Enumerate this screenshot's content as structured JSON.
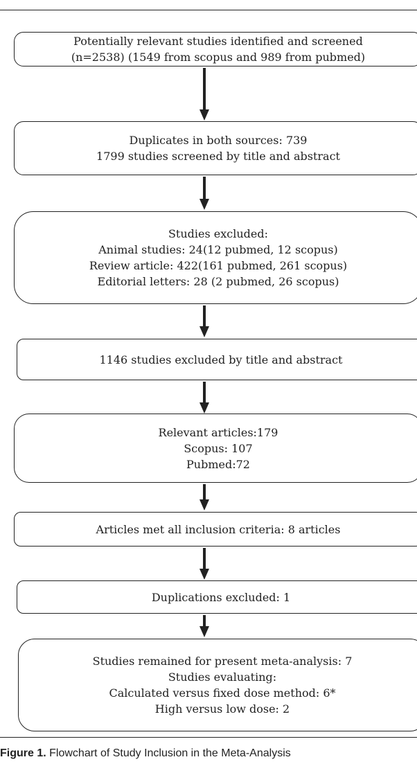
{
  "boxes": [
    {
      "lines": [
        "Potentially relevant studies identified and screened",
        "(n=2538) (1549 from scopus and 989 from pubmed)"
      ]
    },
    {
      "lines": [
        "Duplicates in both sources: 739",
        "1799 studies screened by title and abstract"
      ]
    },
    {
      "lines": [
        "Studies excluded:",
        "Animal studies: 24(12 pubmed, 12 scopus)",
        "Review article: 422(161 pubmed, 261 scopus)",
        "Editorial letters: 28 (2 pubmed, 26 scopus)"
      ]
    },
    {
      "lines": [
        "1146 studies excluded by title and abstract"
      ]
    },
    {
      "lines": [
        "Relevant articles:179",
        "Scopus: 107",
        "Pubmed:72"
      ]
    },
    {
      "lines": [
        "Articles met all inclusion criteria: 8 articles"
      ]
    },
    {
      "lines": [
        "Duplications excluded: 1"
      ]
    },
    {
      "lines": [
        "Studies remained for present meta-analysis: 7",
        "Studies evaluating:",
        "Calculated versus fixed dose method: 6*",
        "High versus low dose: 2"
      ]
    }
  ],
  "caption": {
    "label": "Figure 1.",
    "text": "Flowchart of Study Inclusion in the Meta-Analysis"
  }
}
